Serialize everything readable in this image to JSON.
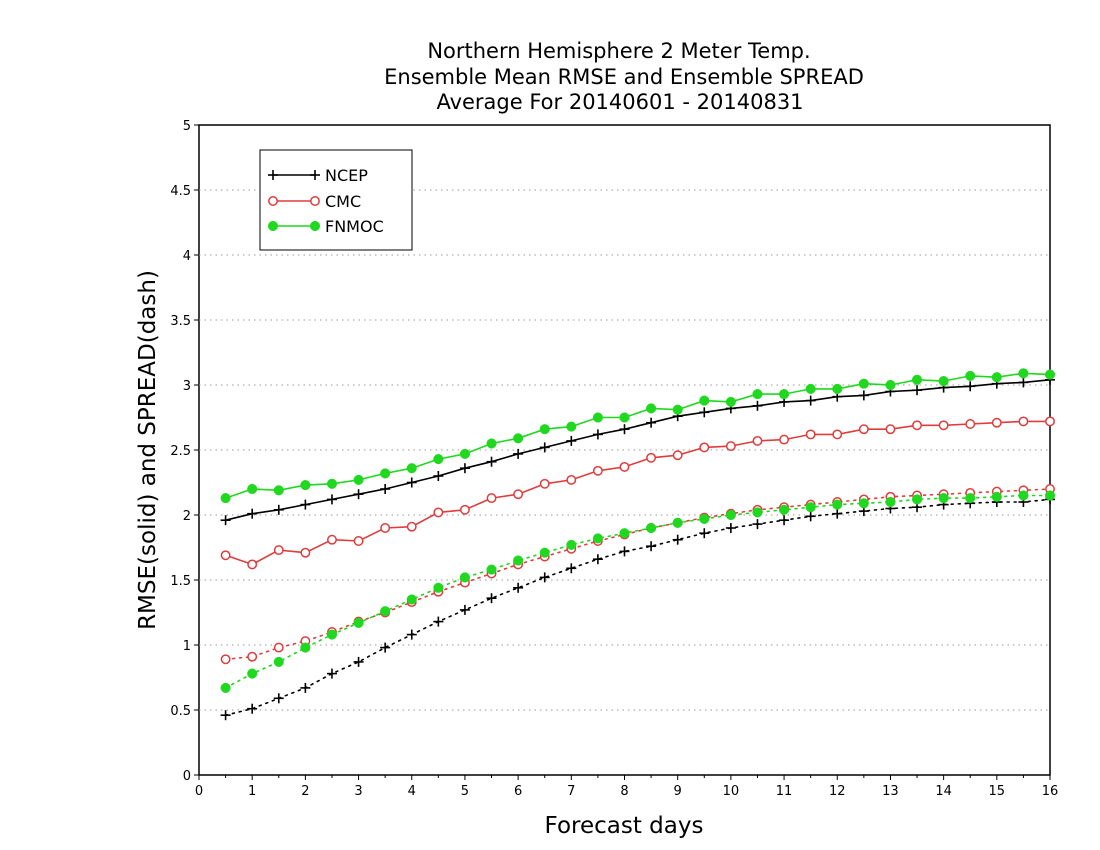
{
  "chart_data": {
    "type": "line",
    "title_lines": [
      "Northern Hemisphere 2 Meter Temp.",
      "Ensemble Mean RMSE and Ensemble SPREAD",
      "Average For 20140601 - 20140831"
    ],
    "xlabel": "Forecast days",
    "ylabel": "RMSE(solid) and SPREAD(dash)",
    "xlim": [
      0,
      16
    ],
    "ylim": [
      0,
      5
    ],
    "xticks": [
      "0",
      "1",
      "2",
      "3",
      "4",
      "5",
      "6",
      "7",
      "8",
      "9",
      "10",
      "11",
      "12",
      "13",
      "14",
      "15",
      "16"
    ],
    "yticks": [
      "0",
      "0.5",
      "1",
      "1.5",
      "2",
      "2.5",
      "3",
      "3.5",
      "4",
      "4.5",
      "5"
    ],
    "ytick_values": [
      0,
      0.5,
      1,
      1.5,
      2,
      2.5,
      3,
      3.5,
      4,
      4.5,
      5
    ],
    "grid": "horizontal dotted",
    "legend_position": "top-left",
    "x": [
      0.5,
      1,
      1.5,
      2,
      2.5,
      3,
      3.5,
      4,
      4.5,
      5,
      5.5,
      6,
      6.5,
      7,
      7.5,
      8,
      8.5,
      9,
      9.5,
      10,
      10.5,
      11,
      11.5,
      12,
      12.5,
      13,
      13.5,
      14,
      14.5,
      15,
      15.5,
      16
    ],
    "series": [
      {
        "name": "NCEP",
        "color": "#000000",
        "marker": "plus",
        "rmse": [
          1.96,
          2.01,
          2.04,
          2.08,
          2.12,
          2.16,
          2.2,
          2.25,
          2.3,
          2.36,
          2.41,
          2.47,
          2.52,
          2.57,
          2.62,
          2.66,
          2.71,
          2.76,
          2.79,
          2.82,
          2.84,
          2.87,
          2.88,
          2.91,
          2.92,
          2.95,
          2.96,
          2.98,
          2.99,
          3.01,
          3.02,
          3.04
        ],
        "spread": [
          0.46,
          0.51,
          0.59,
          0.67,
          0.78,
          0.87,
          0.98,
          1.08,
          1.18,
          1.27,
          1.36,
          1.44,
          1.52,
          1.59,
          1.66,
          1.72,
          1.76,
          1.81,
          1.86,
          1.9,
          1.93,
          1.96,
          1.99,
          2.01,
          2.03,
          2.05,
          2.06,
          2.08,
          2.09,
          2.1,
          2.1,
          2.12
        ]
      },
      {
        "name": "CMC",
        "color": "#e03c3c",
        "marker": "open-circle",
        "rmse": [
          1.69,
          1.62,
          1.73,
          1.71,
          1.81,
          1.8,
          1.9,
          1.91,
          2.02,
          2.04,
          2.13,
          2.16,
          2.24,
          2.27,
          2.34,
          2.37,
          2.44,
          2.46,
          2.52,
          2.53,
          2.57,
          2.58,
          2.62,
          2.62,
          2.66,
          2.66,
          2.69,
          2.69,
          2.7,
          2.71,
          2.72,
          2.72
        ],
        "spread": [
          0.89,
          0.91,
          0.98,
          1.03,
          1.1,
          1.18,
          1.25,
          1.33,
          1.41,
          1.48,
          1.55,
          1.62,
          1.68,
          1.74,
          1.8,
          1.85,
          1.9,
          1.94,
          1.98,
          2.01,
          2.04,
          2.06,
          2.08,
          2.1,
          2.12,
          2.14,
          2.15,
          2.16,
          2.17,
          2.18,
          2.19,
          2.2
        ]
      },
      {
        "name": "FNMOC",
        "color": "#1fd81f",
        "marker": "filled-circle",
        "rmse": [
          2.13,
          2.2,
          2.19,
          2.23,
          2.24,
          2.27,
          2.32,
          2.36,
          2.43,
          2.47,
          2.55,
          2.59,
          2.66,
          2.68,
          2.75,
          2.75,
          2.82,
          2.81,
          2.88,
          2.87,
          2.93,
          2.93,
          2.97,
          2.97,
          3.01,
          3.0,
          3.04,
          3.03,
          3.07,
          3.06,
          3.09,
          3.08
        ],
        "spread": [
          0.67,
          0.78,
          0.87,
          0.98,
          1.08,
          1.17,
          1.26,
          1.35,
          1.44,
          1.52,
          1.58,
          1.65,
          1.71,
          1.77,
          1.82,
          1.86,
          1.9,
          1.94,
          1.97,
          2.0,
          2.02,
          2.04,
          2.06,
          2.08,
          2.09,
          2.1,
          2.12,
          2.13,
          2.13,
          2.14,
          2.15,
          2.15
        ]
      }
    ]
  }
}
